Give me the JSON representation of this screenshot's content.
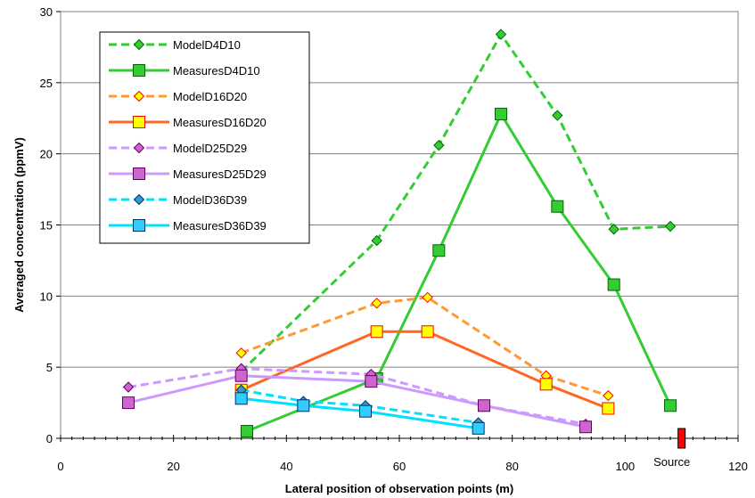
{
  "chart_data": {
    "type": "line",
    "xlabel": "Lateral position of observation points (m)",
    "ylabel": "Averaged concentration (ppmV)",
    "xlim": [
      0,
      120
    ],
    "ylim": [
      0,
      30
    ],
    "xticks": [
      0,
      20,
      40,
      60,
      80,
      100,
      120
    ],
    "yticks": [
      0,
      5,
      10,
      15,
      20,
      25,
      30
    ],
    "grid": "horizontal",
    "legend_position": "top-left",
    "series": [
      {
        "name": "ModelD4D10",
        "style": "dashed",
        "marker": "diamond",
        "line_color": "#33CC33",
        "marker_fill": "#33CC33",
        "marker_edge": "#006600",
        "x": [
          32,
          56,
          67,
          78,
          88,
          98,
          108
        ],
        "y": [
          4.7,
          13.9,
          20.6,
          28.4,
          22.7,
          14.7,
          14.9
        ]
      },
      {
        "name": "MeasuresD4D10",
        "style": "solid",
        "marker": "square",
        "line_color": "#33CC33",
        "marker_fill": "#33CC33",
        "marker_edge": "#006600",
        "x": [
          33,
          56,
          67,
          78,
          88,
          98,
          108
        ],
        "y": [
          0.5,
          4.2,
          13.2,
          22.8,
          16.3,
          10.8,
          2.3
        ]
      },
      {
        "name": "ModelD16D20",
        "style": "dashed",
        "marker": "diamond",
        "line_color": "#FF9933",
        "marker_fill": "#FFFF00",
        "marker_edge": "#FF0000",
        "x": [
          32,
          56,
          65,
          86,
          97
        ],
        "y": [
          6.0,
          9.5,
          9.9,
          4.4,
          3.0
        ]
      },
      {
        "name": "MeasuresD16D20",
        "style": "solid",
        "marker": "square",
        "line_color": "#FF6622",
        "marker_fill": "#FFFF00",
        "marker_edge": "#FF0000",
        "x": [
          32,
          56,
          65,
          86,
          97
        ],
        "y": [
          3.4,
          7.5,
          7.5,
          3.8,
          2.1
        ]
      },
      {
        "name": "ModelD25D29",
        "style": "dashed",
        "marker": "diamond",
        "line_color": "#CC99FF",
        "marker_fill": "#CC66CC",
        "marker_edge": "#660066",
        "x": [
          12,
          32,
          55,
          75,
          93
        ],
        "y": [
          3.6,
          4.9,
          4.5,
          2.3,
          1.0
        ]
      },
      {
        "name": "MeasuresD25D29",
        "style": "solid",
        "marker": "square",
        "line_color": "#CC99FF",
        "marker_fill": "#CC66CC",
        "marker_edge": "#660066",
        "x": [
          12,
          32,
          55,
          75,
          93
        ],
        "y": [
          2.5,
          4.4,
          4.0,
          2.3,
          0.8
        ]
      },
      {
        "name": "ModelD36D39",
        "style": "dashed",
        "marker": "diamond",
        "line_color": "#00E0FF",
        "marker_fill": "#3399CC",
        "marker_edge": "#003366",
        "x": [
          32,
          43,
          54,
          74
        ],
        "y": [
          3.4,
          2.6,
          2.3,
          1.1
        ]
      },
      {
        "name": "MeasuresD36D39",
        "style": "solid",
        "marker": "square",
        "line_color": "#00E0FF",
        "marker_fill": "#33CCFF",
        "marker_edge": "#003366",
        "x": [
          32,
          43,
          54,
          74
        ],
        "y": [
          2.8,
          2.3,
          1.9,
          0.7
        ]
      }
    ],
    "annotation": {
      "text": "Source",
      "x": 110,
      "y": 0,
      "marker_color": "#FF0000"
    }
  }
}
